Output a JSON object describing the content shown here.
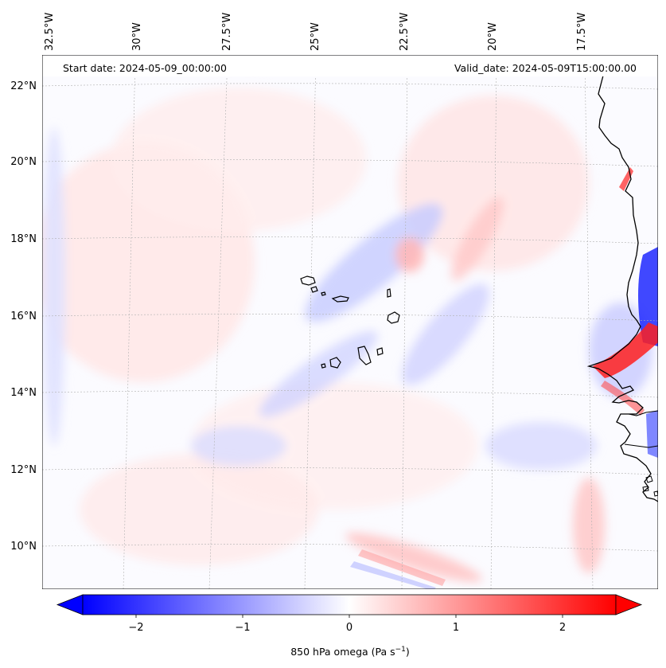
{
  "map": {
    "header": {
      "start_label": "Start date: 2024-05-09_00:00:00",
      "valid_label": "Valid_date: 2024-05-09T15:00:00.00"
    },
    "lon_labels": [
      "32.5°W",
      "30°W",
      "27.5°W",
      "25°W",
      "22.5°W",
      "20°W",
      "17.5°W"
    ],
    "lat_labels": [
      "22°N",
      "20°N",
      "18°N",
      "16°N",
      "14°N",
      "12°N",
      "10°N"
    ],
    "colorbar": {
      "ticks": [
        "−2",
        "−1",
        "0",
        "1",
        "2"
      ],
      "tick_values": [
        -2,
        -1,
        0,
        1,
        2
      ],
      "range": [
        -2.5,
        2.5
      ],
      "label": "850 hPa omega (Pa s",
      "label_sup": "−1",
      "label_end": ")",
      "colors": {
        "low": "#0000ff",
        "mid": "#ffffff",
        "high": "#ff0000"
      }
    }
  }
}
